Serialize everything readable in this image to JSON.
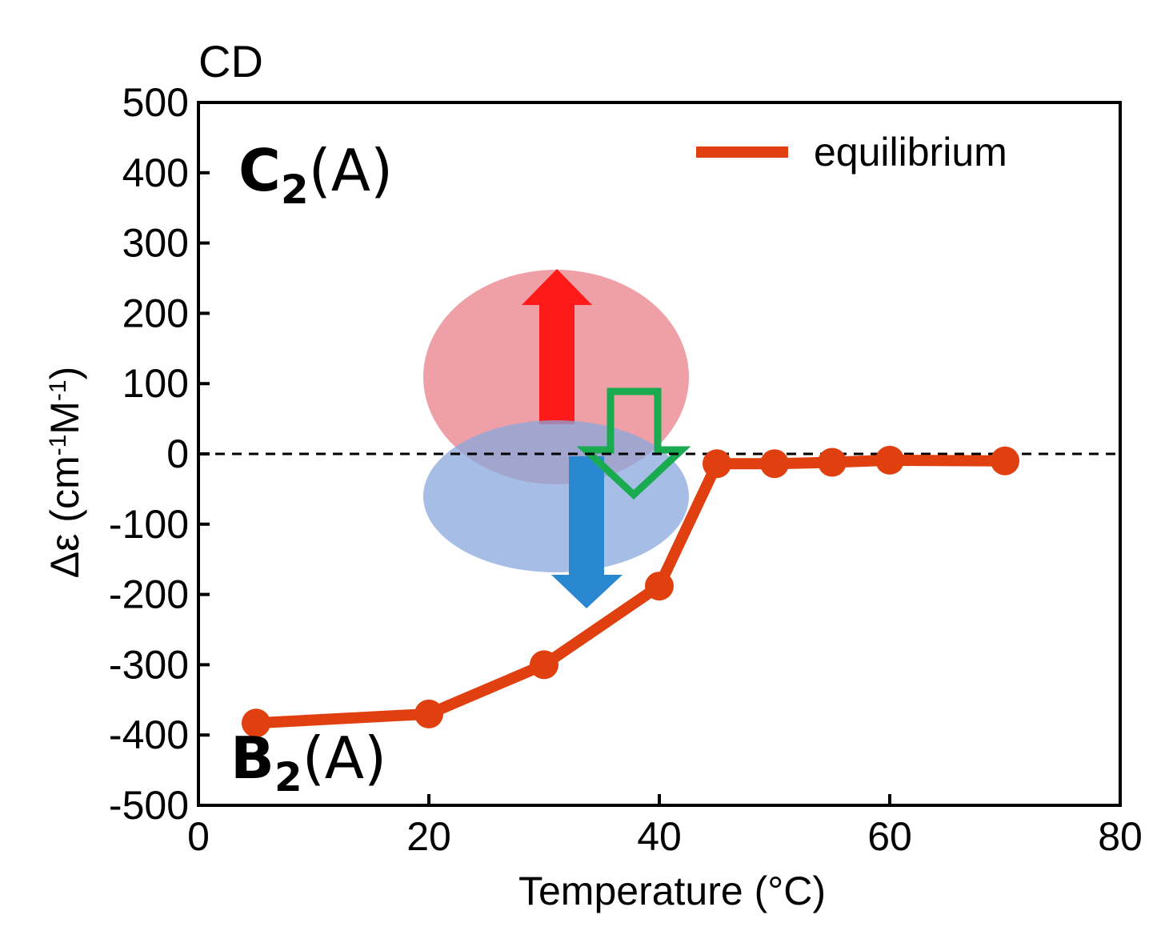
{
  "chart_data": {
    "type": "line",
    "panel_label": "CD",
    "xlabel": "Temperature (°C)",
    "ylabel_main": "Δε (cm",
    "ylabel_exp1": "-1",
    "ylabel_mid": "M",
    "ylabel_exp2": "-1",
    "ylabel_end": ")",
    "xlim": [
      0,
      80
    ],
    "ylim": [
      -500,
      500
    ],
    "xticks": [
      0,
      20,
      40,
      60,
      80
    ],
    "yticks": [
      500,
      400,
      300,
      200,
      100,
      0,
      -100,
      -200,
      -300,
      -400,
      -500
    ],
    "reference_line_y": 0,
    "series": [
      {
        "name": "equilibrium",
        "color": "#e04010",
        "x": [
          5,
          20,
          30,
          40,
          45,
          50,
          55,
          60,
          70
        ],
        "y": [
          -383,
          -370,
          -300,
          -188,
          -14,
          -14,
          -12,
          -9,
          -10
        ]
      }
    ],
    "legend": {
      "position": "top-right",
      "entries": [
        "equilibrium"
      ]
    },
    "annotations": {
      "upper_state": {
        "main": "C",
        "sub": "2",
        "suffix": "(A)"
      },
      "lower_state": {
        "main": "B",
        "sub": "2",
        "suffix": "(A)"
      },
      "red_ellipse_color": "#e88088",
      "blue_ellipse_color": "#88a8dc",
      "red_arrow_color": "#ff1a1a",
      "blue_arrow_color": "#2a88d0",
      "green_arrow_color": "#1aaa50"
    }
  }
}
